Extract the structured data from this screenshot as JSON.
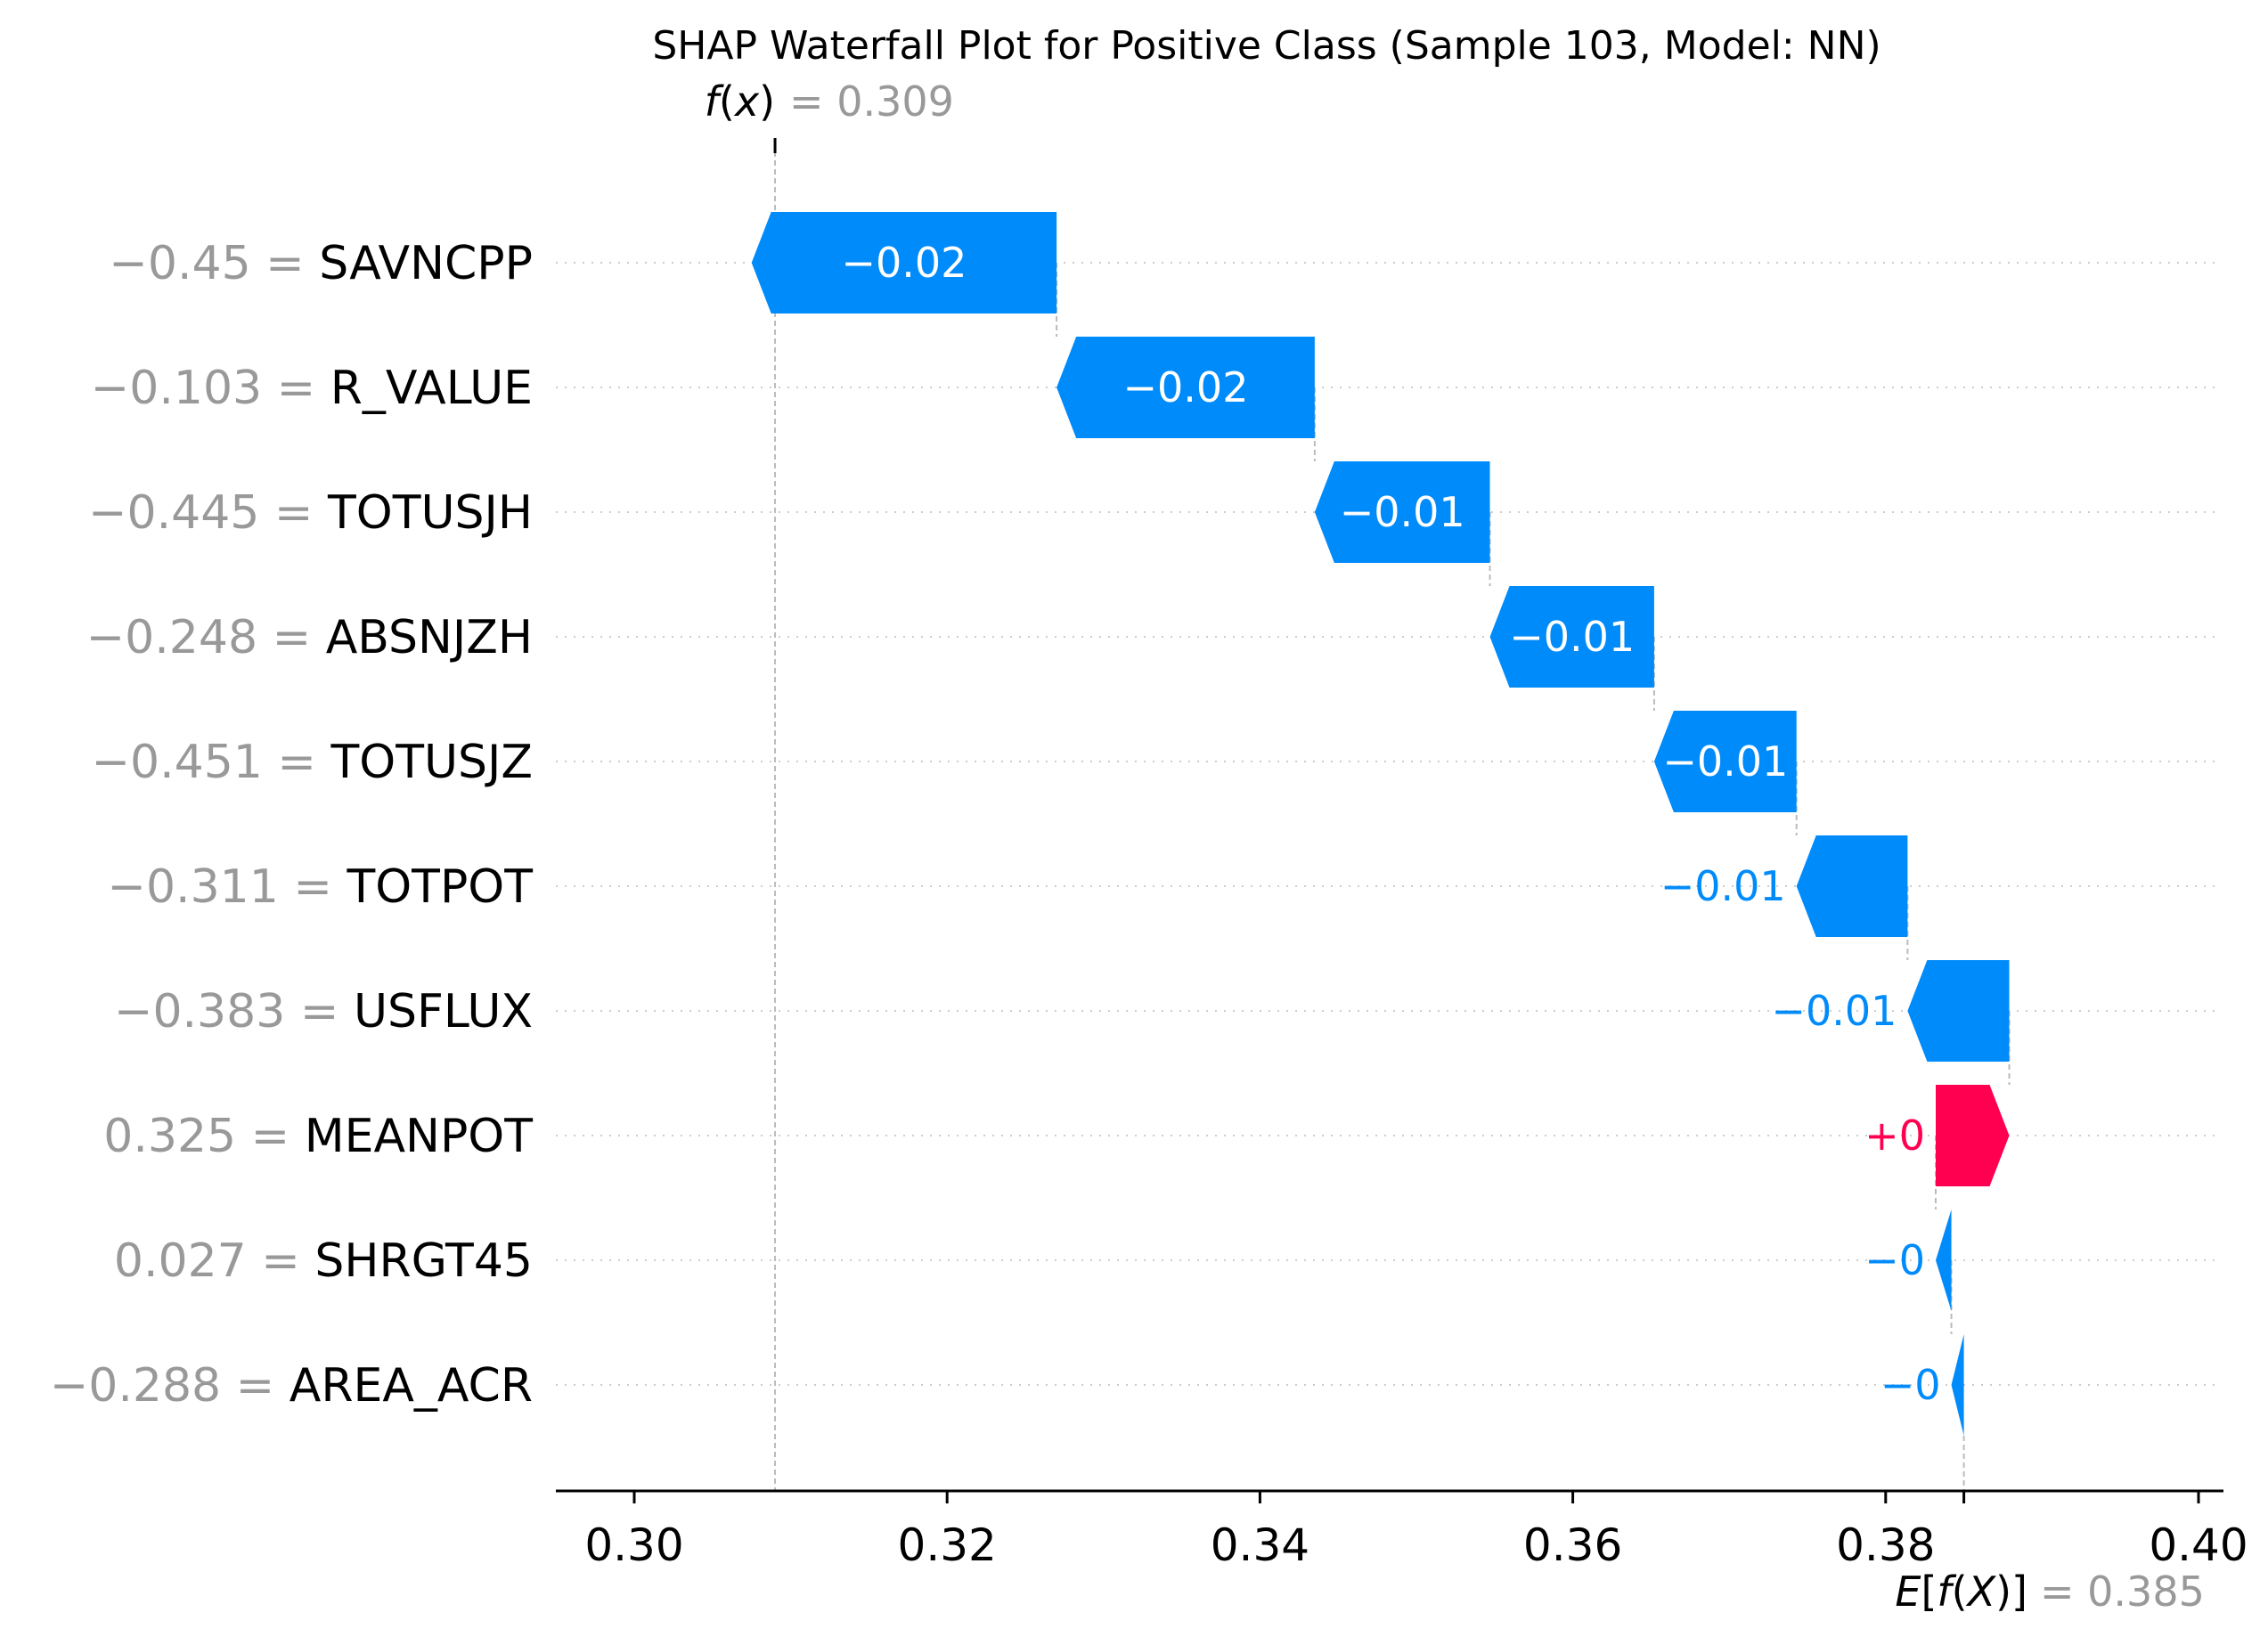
{
  "chart_data": {
    "type": "waterfall",
    "title": "SHAP Waterfall Plot for Positive Class (Sample 103, Model: NN)",
    "fx": {
      "label_math": "f(x)",
      "value_text": "= 0.309",
      "value": 0.309
    },
    "expected": {
      "label_math": "E[f(X)]",
      "value_text": "= 0.385",
      "value": 0.385
    },
    "xlim": [
      0.295,
      0.401
    ],
    "xticks": [
      0.3,
      0.32,
      0.34,
      0.36,
      0.38,
      0.4
    ],
    "xtick_labels": [
      "0.30",
      "0.32",
      "0.34",
      "0.36",
      "0.38",
      "0.40"
    ],
    "grid": "horizontal dotted per feature row",
    "colors": {
      "negative": "#008bfb",
      "positive": "#ff0051",
      "muted_text": "#999999",
      "guide": "#bbbbbb"
    },
    "features": [
      {
        "name": "SAVNCPP",
        "value_text": "−0.45",
        "shap": -0.0195,
        "label": "−0.02"
      },
      {
        "name": "R_VALUE",
        "value_text": "−0.103",
        "shap": -0.0165,
        "label": "−0.02"
      },
      {
        "name": "TOTUSJH",
        "value_text": "−0.445",
        "shap": -0.0112,
        "label": "−0.01"
      },
      {
        "name": "ABSNJZH",
        "value_text": "−0.248",
        "shap": -0.0105,
        "label": "−0.01"
      },
      {
        "name": "TOTUSJZ",
        "value_text": "−0.451",
        "shap": -0.0091,
        "label": "−0.01"
      },
      {
        "name": "TOTPOT",
        "value_text": "−0.311",
        "shap": -0.0071,
        "label": "−0.01"
      },
      {
        "name": "USFLUX",
        "value_text": "−0.383",
        "shap": -0.0065,
        "label": "−0.01"
      },
      {
        "name": "MEANPOT",
        "value_text": "0.325",
        "shap": 0.0047,
        "label": "+0"
      },
      {
        "name": "SHRGT45",
        "value_text": "0.027",
        "shap": -0.001,
        "label": "−0"
      },
      {
        "name": "AREA_ACR",
        "value_text": "−0.288",
        "shap": -0.0008,
        "label": "−0"
      }
    ]
  }
}
